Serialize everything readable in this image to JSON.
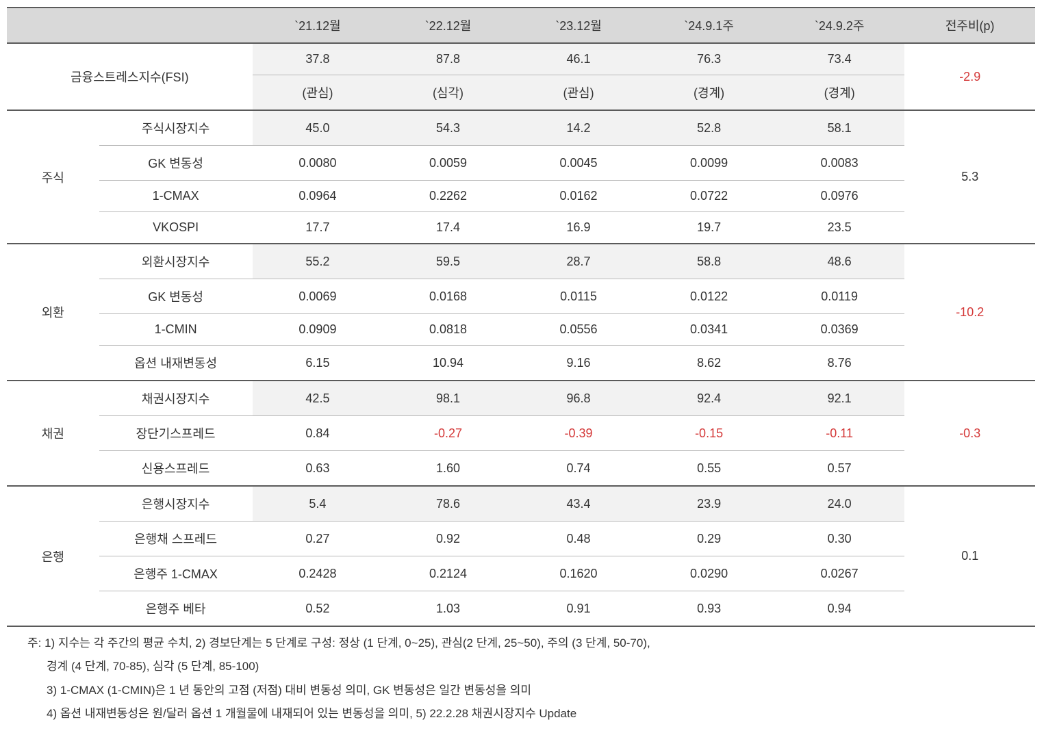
{
  "headers": {
    "blank1": "",
    "blank2": "",
    "p1": "`21.12월",
    "p2": "`22.12월",
    "p3": "`23.12월",
    "p4": "`24.9.1주",
    "p5": "`24.9.2주",
    "change": "전주비(p)"
  },
  "fsi": {
    "label": "금융스트레스지수(FSI)",
    "values": [
      "37.8",
      "87.8",
      "46.1",
      "76.3",
      "73.4"
    ],
    "levels": [
      "(관심)",
      "(심각)",
      "(관심)",
      "(경계)",
      "(경계)"
    ],
    "change": "-2.9",
    "change_neg": true
  },
  "groups": [
    {
      "name": "주식",
      "change": "5.3",
      "change_neg": false,
      "rows": [
        {
          "label": "주식시장지수",
          "shaded": true,
          "values": [
            "45.0",
            "54.3",
            "14.2",
            "52.8",
            "58.1"
          ],
          "neg": [
            false,
            false,
            false,
            false,
            false
          ]
        },
        {
          "label": "GK 변동성",
          "shaded": false,
          "values": [
            "0.0080",
            "0.0059",
            "0.0045",
            "0.0099",
            "0.0083"
          ],
          "neg": [
            false,
            false,
            false,
            false,
            false
          ]
        },
        {
          "label": "1-CMAX",
          "shaded": false,
          "values": [
            "0.0964",
            "0.2262",
            "0.0162",
            "0.0722",
            "0.0976"
          ],
          "neg": [
            false,
            false,
            false,
            false,
            false
          ]
        },
        {
          "label": "VKOSPI",
          "shaded": false,
          "values": [
            "17.7",
            "17.4",
            "16.9",
            "19.7",
            "23.5"
          ],
          "neg": [
            false,
            false,
            false,
            false,
            false
          ]
        }
      ]
    },
    {
      "name": "외환",
      "change": "-10.2",
      "change_neg": true,
      "rows": [
        {
          "label": "외환시장지수",
          "shaded": true,
          "values": [
            "55.2",
            "59.5",
            "28.7",
            "58.8",
            "48.6"
          ],
          "neg": [
            false,
            false,
            false,
            false,
            false
          ]
        },
        {
          "label": "GK 변동성",
          "shaded": false,
          "values": [
            "0.0069",
            "0.0168",
            "0.0115",
            "0.0122",
            "0.0119"
          ],
          "neg": [
            false,
            false,
            false,
            false,
            false
          ]
        },
        {
          "label": "1-CMIN",
          "shaded": false,
          "values": [
            "0.0909",
            "0.0818",
            "0.0556",
            "0.0341",
            "0.0369"
          ],
          "neg": [
            false,
            false,
            false,
            false,
            false
          ]
        },
        {
          "label": "옵션 내재변동성",
          "shaded": false,
          "values": [
            "6.15",
            "10.94",
            "9.16",
            "8.62",
            "8.76"
          ],
          "neg": [
            false,
            false,
            false,
            false,
            false
          ]
        }
      ]
    },
    {
      "name": "채권",
      "change": "-0.3",
      "change_neg": true,
      "rows": [
        {
          "label": "채권시장지수",
          "shaded": true,
          "values": [
            "42.5",
            "98.1",
            "96.8",
            "92.4",
            "92.1"
          ],
          "neg": [
            false,
            false,
            false,
            false,
            false
          ]
        },
        {
          "label": "장단기스프레드",
          "shaded": false,
          "values": [
            "0.84",
            "-0.27",
            "-0.39",
            "-0.15",
            "-0.11"
          ],
          "neg": [
            false,
            true,
            true,
            true,
            true
          ]
        },
        {
          "label": "신용스프레드",
          "shaded": false,
          "values": [
            "0.63",
            "1.60",
            "0.74",
            "0.55",
            "0.57"
          ],
          "neg": [
            false,
            false,
            false,
            false,
            false
          ]
        }
      ]
    },
    {
      "name": "은행",
      "change": "0.1",
      "change_neg": false,
      "rows": [
        {
          "label": "은행시장지수",
          "shaded": true,
          "values": [
            "5.4",
            "78.6",
            "43.4",
            "23.9",
            "24.0"
          ],
          "neg": [
            false,
            false,
            false,
            false,
            false
          ]
        },
        {
          "label": "은행채 스프레드",
          "shaded": false,
          "values": [
            "0.27",
            "0.92",
            "0.48",
            "0.29",
            "0.30"
          ],
          "neg": [
            false,
            false,
            false,
            false,
            false
          ]
        },
        {
          "label": "은행주 1-CMAX",
          "shaded": false,
          "values": [
            "0.2428",
            "0.2124",
            "0.1620",
            "0.0290",
            "0.0267"
          ],
          "neg": [
            false,
            false,
            false,
            false,
            false
          ]
        },
        {
          "label": "은행주 베타",
          "shaded": false,
          "values": [
            "0.52",
            "1.03",
            "0.91",
            "0.93",
            "0.94"
          ],
          "neg": [
            false,
            false,
            false,
            false,
            false
          ]
        }
      ]
    }
  ],
  "notes": [
    "주: 1) 지수는 각 주간의 평균 수치, 2) 경보단계는 5 단계로 구성: 정상 (1 단계, 0~25), 관심(2 단계, 25~50), 주의 (3 단계, 50-70),",
    "경계 (4 단계, 70-85), 심각 (5 단계, 85-100)",
    "3) 1-CMAX (1-CMIN)은 1 년 동안의 고점 (저점) 대비 변동성 의미, GK 변동성은 일간 변동성을 의미",
    "4) 옵션 내재변동성은 원/달러 옵션 1 개월물에 내재되어 있는 변동성을 의미, 5) 22.2.28 채권시장지수 Update"
  ]
}
